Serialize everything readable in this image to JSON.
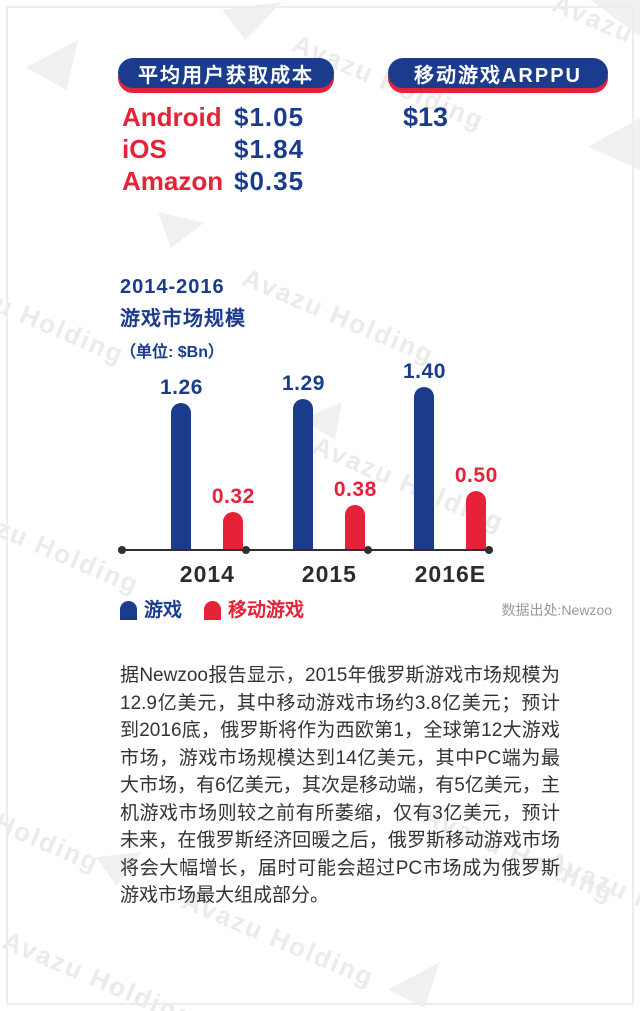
{
  "watermark": {
    "text": "Avazu Holding"
  },
  "stats": {
    "cost_card": {
      "title": "平均用户获取成本",
      "rows": [
        {
          "label": "Android",
          "value": "$1.05"
        },
        {
          "label": "iOS",
          "value": "$1.84"
        },
        {
          "label": "Amazon",
          "value": "$0.35"
        }
      ]
    },
    "arppu_card": {
      "title": "移动游戏ARPPU",
      "value": "$13"
    }
  },
  "chart": {
    "title_line1": "2014-2016",
    "title_line2": "游戏市场规模",
    "unit_label": "（单位: $Bn）",
    "source": "数据出处:Newzoo",
    "legend": [
      {
        "label": "游戏",
        "color": "#1b3c8c"
      },
      {
        "label": "移动游戏",
        "color": "#e62239"
      }
    ]
  },
  "chart_data": {
    "type": "bar",
    "title": "2014-2016 游戏市场规模",
    "unit": "$Bn",
    "categories": [
      "2014",
      "2015",
      "2016E"
    ],
    "series": [
      {
        "name": "游戏",
        "color": "#1b3c8c",
        "values": [
          1.26,
          1.29,
          1.4
        ]
      },
      {
        "name": "移动游戏",
        "color": "#e62239",
        "values": [
          0.32,
          0.38,
          0.5
        ]
      }
    ],
    "ylim": [
      0,
      1.5
    ],
    "grid": false,
    "value_labels": true,
    "legend_position": "bottom-left",
    "source": "Newzoo"
  },
  "body": {
    "paragraph": "据Newzoo报告显示，2015年俄罗斯游戏市场规模为12.9亿美元，其中移动游戏市场约3.8亿美元；预计到2016底，俄罗斯将作为西欧第1，全球第12大游戏市场，游戏市场规模达到14亿美元，其中PC端为最大市场，有6亿美元，其次是移动端，有5亿美元，主机游戏市场则较之前有所萎缩，仅有3亿美元，预计未来，在俄罗斯经济回暖之后，俄罗斯移动游戏市场将会大幅增长，届时可能会超过PC市场成为俄罗斯游戏市场最大组成部分。"
  },
  "colors": {
    "blue": "#1b3c8c",
    "red": "#e62239",
    "axis": "#2f2f2f",
    "body_text": "#333333",
    "source_gray": "#9a9a9a",
    "watermark": "#ebebeb"
  }
}
